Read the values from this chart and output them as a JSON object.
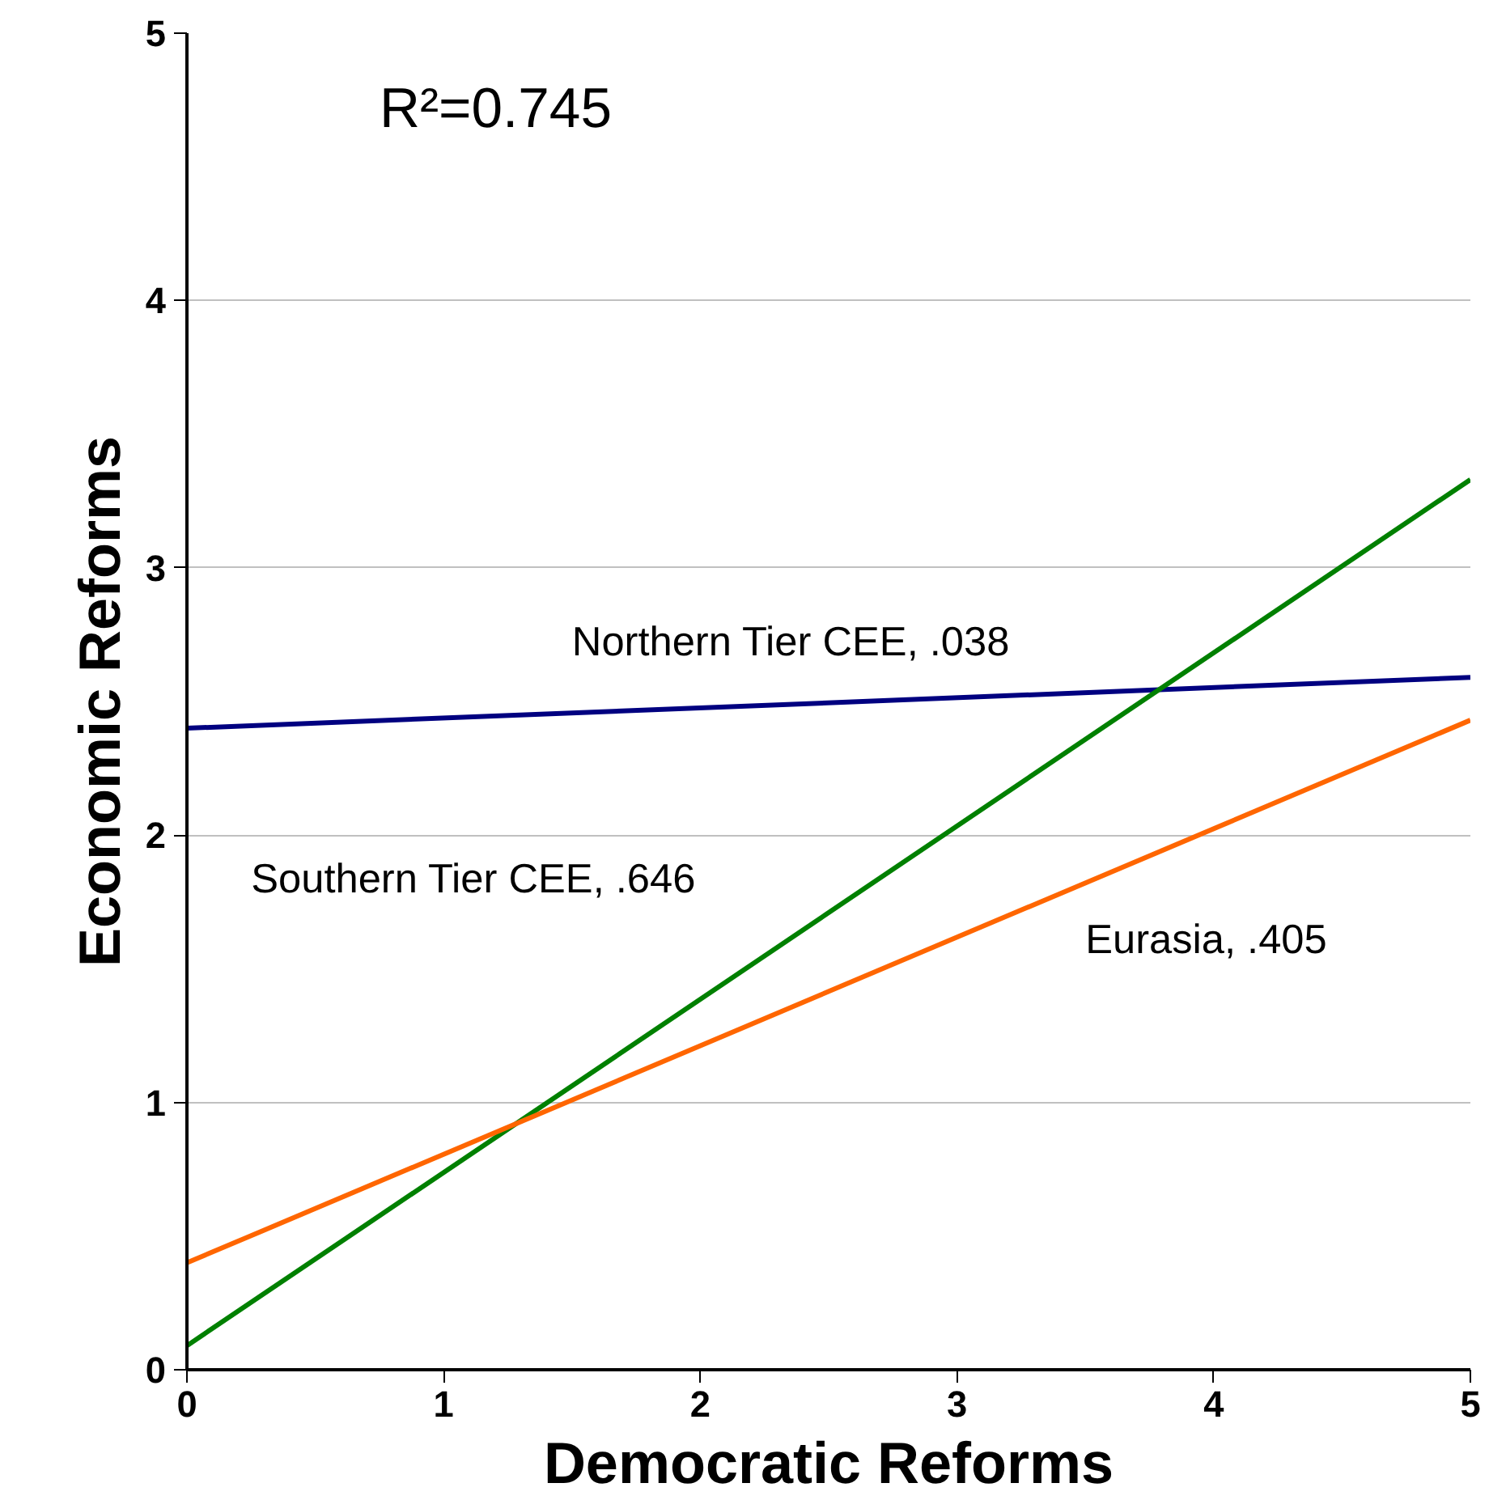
{
  "chart_data": {
    "type": "line",
    "xlabel": "Democratic Reforms",
    "ylabel": "Economic Reforms",
    "annotations": [
      "R²=0.745"
    ],
    "x": [
      0,
      5
    ],
    "series": [
      {
        "name": "Northern Tier CEE, .038",
        "color": "#000080",
        "values": [
          2.4,
          2.59
        ]
      },
      {
        "name": "Southern Tier CEE, .646",
        "color": "#008000",
        "values": [
          0.09,
          3.33
        ]
      },
      {
        "name": "Eurasia, .405",
        "color": "#ff6600",
        "values": [
          0.4,
          2.43
        ]
      }
    ],
    "xlim": [
      0,
      5
    ],
    "ylim": [
      0,
      5
    ],
    "xticks": [
      0,
      1,
      2,
      3,
      4,
      5
    ],
    "yticks": [
      0,
      1,
      2,
      3,
      4,
      5
    ],
    "grid": "y",
    "marker": "none",
    "line_style": "solid"
  }
}
